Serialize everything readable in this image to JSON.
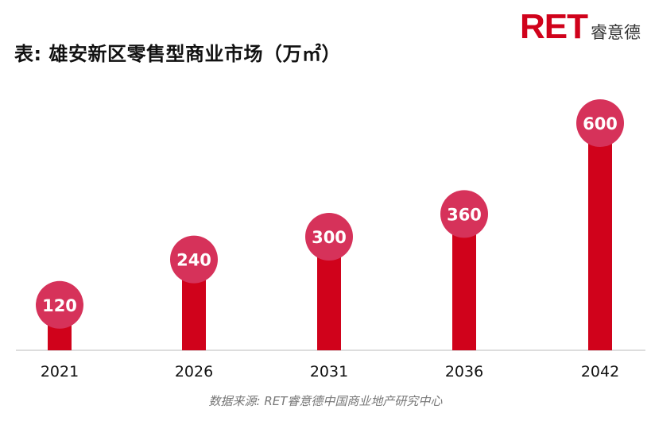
{
  "title": "表: 雄安新区零售型商业市场（万㎡）",
  "logo": {
    "mark": "RET",
    "text": "睿意德"
  },
  "source": "数据来源: RET睿意德中国商业地产研究中心",
  "colors": {
    "bar": "#d0021b",
    "bubble": "#d6325a",
    "label": "#ffffff",
    "axis": "#bbbbbb"
  },
  "chart_data": {
    "type": "bar",
    "categories": [
      "2021",
      "2026",
      "2031",
      "2036",
      "2042"
    ],
    "values": [
      120,
      240,
      300,
      360,
      600
    ],
    "title": "表: 雄安新区零售型商业市场（万㎡）",
    "xlabel": "",
    "ylabel": "",
    "ylim": [
      0,
      650
    ],
    "grid": false,
    "legend": "none"
  }
}
